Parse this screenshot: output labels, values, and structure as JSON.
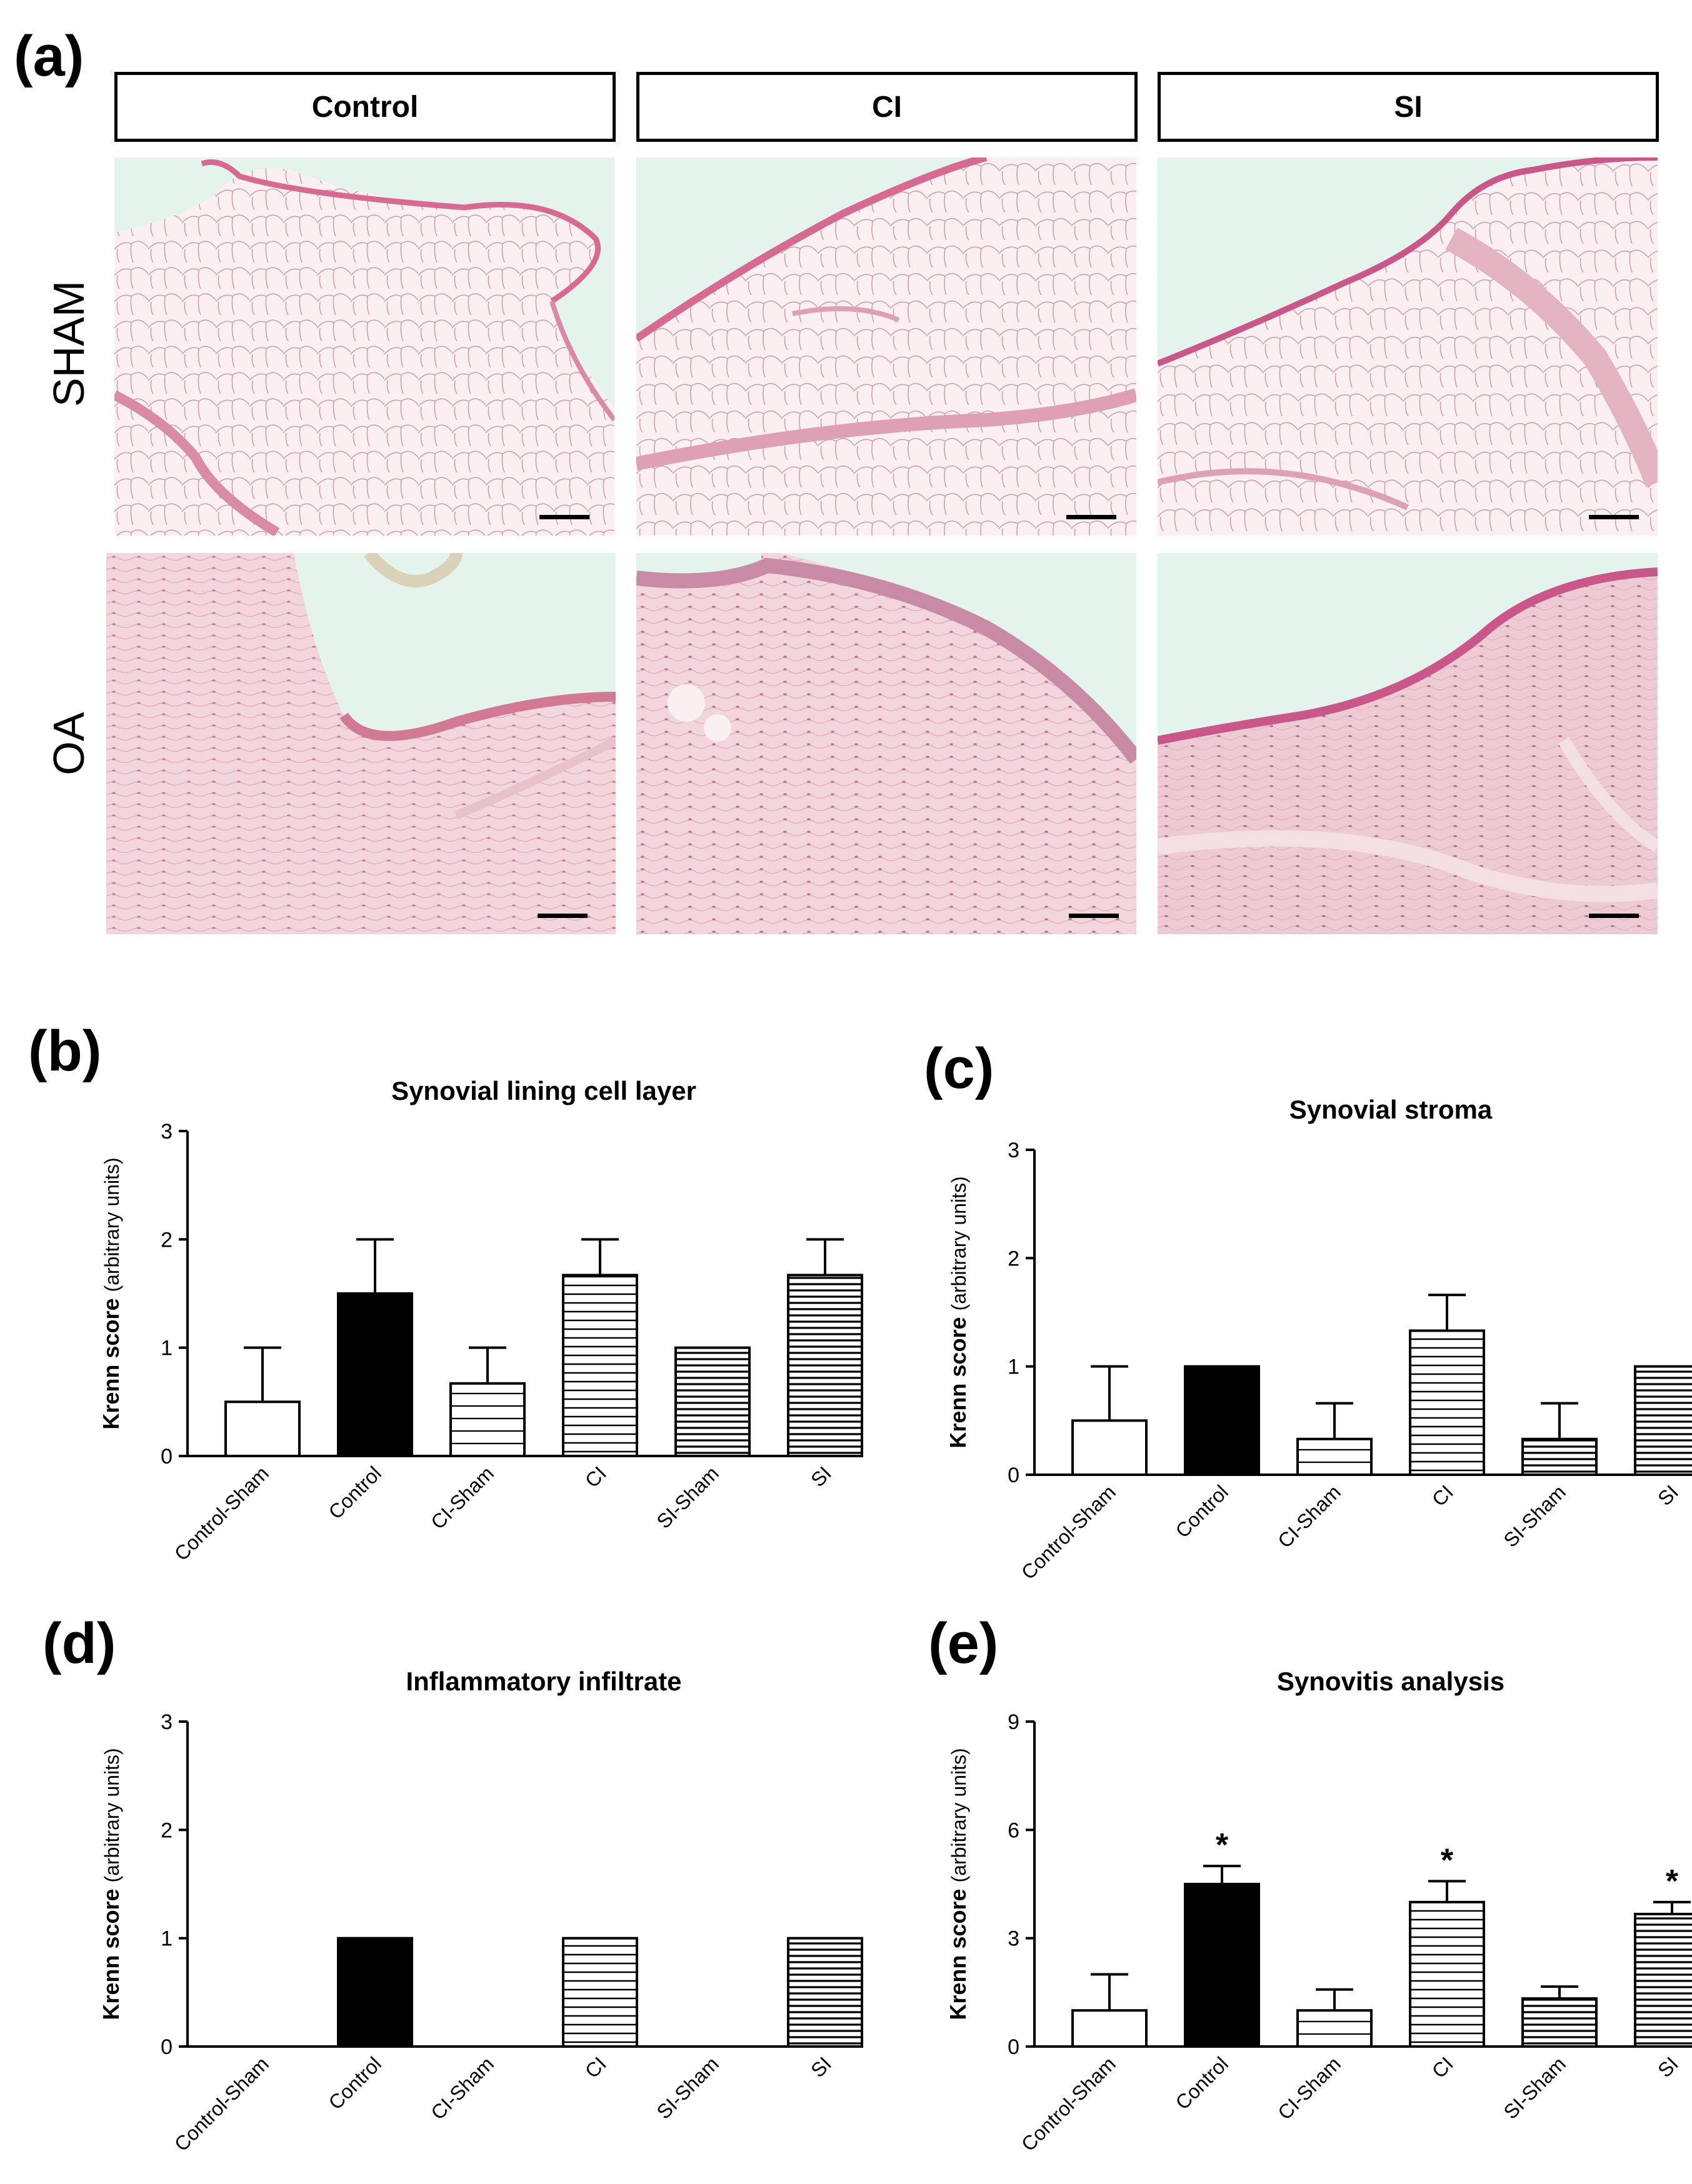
{
  "panels": {
    "a": "(a)",
    "b": "(b)",
    "c": "(c)",
    "d": "(d)",
    "e": "(e)"
  },
  "micrograph": {
    "columns": [
      "Control",
      "CI",
      "SI"
    ],
    "rows": [
      "SHAM",
      "OA"
    ],
    "colors": {
      "background": "#e4f4ec",
      "tissue_light": "#f2d6dc",
      "tissue_dense": "#eecbd3",
      "membrane": "#d76a93",
      "nuclei": "#b0487a"
    }
  },
  "chart_data": [
    {
      "id": "b",
      "type": "bar",
      "title": "Synovial lining cell layer",
      "ylabel": "Krenn score  (arbitrary units)",
      "ylim": [
        0,
        3
      ],
      "yticks": [
        0,
        1,
        2,
        3
      ],
      "categories": [
        "Control-Sham",
        "Control",
        "CI-Sham",
        "CI",
        "SI-Sham",
        "SI"
      ],
      "fills": [
        "white",
        "black",
        "hstripe-sparse",
        "hstripe",
        "hstripe-dense",
        "hstripe-dense"
      ],
      "values": [
        0.5,
        1.5,
        0.67,
        1.67,
        1.0,
        1.67
      ],
      "errors": [
        0.5,
        0.5,
        0.33,
        0.33,
        0,
        0.33
      ],
      "significance": [
        "",
        "",
        "",
        "",
        "",
        ""
      ]
    },
    {
      "id": "c",
      "type": "bar",
      "title": "Synovial stroma",
      "ylabel": "Krenn score  (arbitrary units)",
      "ylim": [
        0,
        3
      ],
      "yticks": [
        0,
        1,
        2,
        3
      ],
      "categories": [
        "Control-Sham",
        "Control",
        "CI-Sham",
        "CI",
        "SI-Sham",
        "SI"
      ],
      "fills": [
        "white",
        "black",
        "hstripe-sparse",
        "hstripe",
        "hstripe-dense",
        "hstripe-dense"
      ],
      "values": [
        0.5,
        1.0,
        0.33,
        1.33,
        0.33,
        1.0
      ],
      "errors": [
        0.5,
        0,
        0.33,
        0.33,
        0.33,
        0
      ],
      "significance": [
        "",
        "",
        "",
        "",
        "",
        ""
      ]
    },
    {
      "id": "d",
      "type": "bar",
      "title": "Inflammatory infiltrate",
      "ylabel": "Krenn score  (arbitrary units)",
      "ylim": [
        0,
        3
      ],
      "yticks": [
        0,
        1,
        2,
        3
      ],
      "categories": [
        "Control-Sham",
        "Control",
        "CI-Sham",
        "CI",
        "SI-Sham",
        "SI"
      ],
      "fills": [
        "white",
        "black",
        "hstripe-sparse",
        "hstripe",
        "hstripe-dense",
        "hstripe-dense"
      ],
      "values": [
        0,
        1.0,
        0,
        1.0,
        0,
        1.0
      ],
      "errors": [
        0,
        0,
        0,
        0,
        0,
        0
      ],
      "significance": [
        "",
        "",
        "",
        "",
        "",
        ""
      ]
    },
    {
      "id": "e",
      "type": "bar",
      "title": "Synovitis analysis",
      "ylabel": "Krenn score  (arbitrary units)",
      "ylim": [
        0,
        9
      ],
      "yticks": [
        0,
        3,
        6,
        9
      ],
      "categories": [
        "Control-Sham",
        "Control",
        "CI-Sham",
        "CI",
        "SI-Sham",
        "SI"
      ],
      "fills": [
        "white",
        "black",
        "hstripe-sparse",
        "hstripe",
        "hstripe-dense",
        "hstripe-dense"
      ],
      "values": [
        1.0,
        4.5,
        1.0,
        4.0,
        1.33,
        3.67
      ],
      "errors": [
        1.0,
        0.5,
        0.58,
        0.58,
        0.33,
        0.33
      ],
      "significance": [
        "",
        "*",
        "",
        "*",
        "",
        "*"
      ]
    }
  ]
}
